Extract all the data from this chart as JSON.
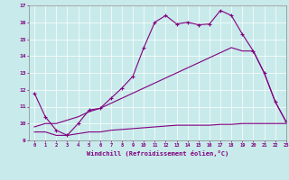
{
  "x": [
    0,
    1,
    2,
    3,
    4,
    5,
    6,
    7,
    8,
    9,
    10,
    11,
    12,
    13,
    14,
    15,
    16,
    17,
    18,
    19,
    20,
    21,
    22,
    23
  ],
  "line1": [
    11.8,
    10.4,
    9.6,
    9.3,
    10.0,
    10.8,
    10.9,
    11.5,
    12.1,
    12.8,
    14.5,
    16.0,
    16.4,
    15.9,
    16.0,
    15.85,
    15.9,
    16.7,
    16.4,
    15.3,
    14.3,
    13.0,
    11.3,
    10.1
  ],
  "line2": [
    9.8,
    10.0,
    10.0,
    10.2,
    10.4,
    10.7,
    10.9,
    11.2,
    11.5,
    11.8,
    12.1,
    12.4,
    12.7,
    13.0,
    13.3,
    13.6,
    13.9,
    14.2,
    14.5,
    14.3,
    14.3,
    13.0,
    11.3,
    10.1
  ],
  "line3": [
    9.5,
    9.5,
    9.3,
    9.3,
    9.4,
    9.5,
    9.5,
    9.6,
    9.65,
    9.7,
    9.75,
    9.8,
    9.85,
    9.9,
    9.9,
    9.9,
    9.9,
    9.95,
    9.95,
    10.0,
    10.0,
    10.0,
    10.0,
    10.0
  ],
  "line_color": "#800080",
  "bg_color": "#c8eaea",
  "xlabel": "Windchill (Refroidissement éolien,°C)",
  "ylim": [
    9,
    17
  ],
  "xlim": [
    -0.5,
    23
  ],
  "yticks": [
    9,
    10,
    11,
    12,
    13,
    14,
    15,
    16,
    17
  ],
  "xticks": [
    0,
    1,
    2,
    3,
    4,
    5,
    6,
    7,
    8,
    9,
    10,
    11,
    12,
    13,
    14,
    15,
    16,
    17,
    18,
    19,
    20,
    21,
    22,
    23
  ],
  "marker": "+"
}
